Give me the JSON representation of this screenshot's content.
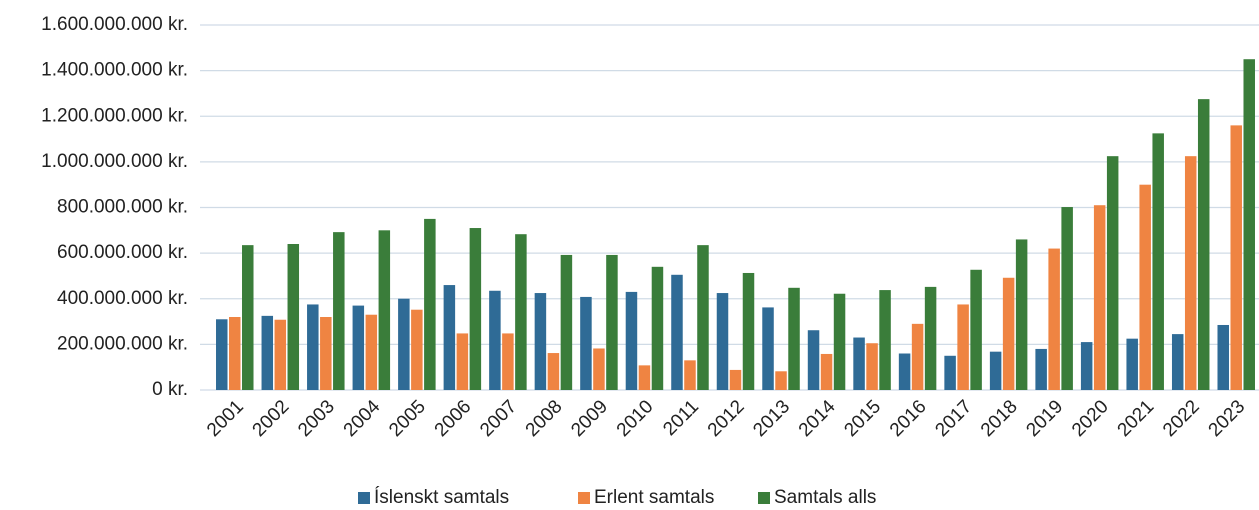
{
  "chart_data": {
    "type": "bar",
    "categories": [
      "2001",
      "2002",
      "2003",
      "2004",
      "2005",
      "2006",
      "2007",
      "2008",
      "2009",
      "2010",
      "2011",
      "2012",
      "2013",
      "2014",
      "2015",
      "2016",
      "2017",
      "2018",
      "2019",
      "2020",
      "2021",
      "2022",
      "2023"
    ],
    "series": [
      {
        "name": "Íslenskt samtals",
        "color": "#2f6b96",
        "values": [
          310000000,
          325000000,
          375000000,
          370000000,
          400000000,
          460000000,
          435000000,
          425000000,
          408000000,
          430000000,
          505000000,
          425000000,
          362000000,
          262000000,
          230000000,
          160000000,
          150000000,
          168000000,
          180000000,
          210000000,
          225000000,
          245000000,
          285000000
        ]
      },
      {
        "name": "Erlent samtals",
        "color": "#ef8442",
        "values": [
          320000000,
          308000000,
          320000000,
          330000000,
          352000000,
          248000000,
          248000000,
          162000000,
          182000000,
          108000000,
          130000000,
          88000000,
          82000000,
          158000000,
          205000000,
          290000000,
          375000000,
          492000000,
          620000000,
          810000000,
          900000000,
          1025000000,
          1160000000
        ]
      },
      {
        "name": "Samtals alls",
        "color": "#3a7d3a",
        "values": [
          635000000,
          640000000,
          692000000,
          700000000,
          750000000,
          710000000,
          683000000,
          592000000,
          592000000,
          540000000,
          635000000,
          513000000,
          448000000,
          422000000,
          438000000,
          452000000,
          527000000,
          660000000,
          802000000,
          1025000000,
          1125000000,
          1275000000,
          1450000000
        ]
      }
    ],
    "ylim": [
      0,
      1600000000
    ],
    "yticks": [
      {
        "value": 0,
        "label": "0 kr."
      },
      {
        "value": 200000000,
        "label": "200.000.000 kr."
      },
      {
        "value": 400000000,
        "label": "400.000.000 kr."
      },
      {
        "value": 600000000,
        "label": "600.000.000 kr."
      },
      {
        "value": 800000000,
        "label": "800.000.000 kr."
      },
      {
        "value": 1000000000,
        "label": "1.000.000.000 kr."
      },
      {
        "value": 1200000000,
        "label": "1.200.000.000 kr."
      },
      {
        "value": 1400000000,
        "label": "1.400.000.000 kr."
      },
      {
        "value": 1600000000,
        "label": "1.600.000.000 kr."
      }
    ],
    "grid": true,
    "legend": "bottom"
  }
}
